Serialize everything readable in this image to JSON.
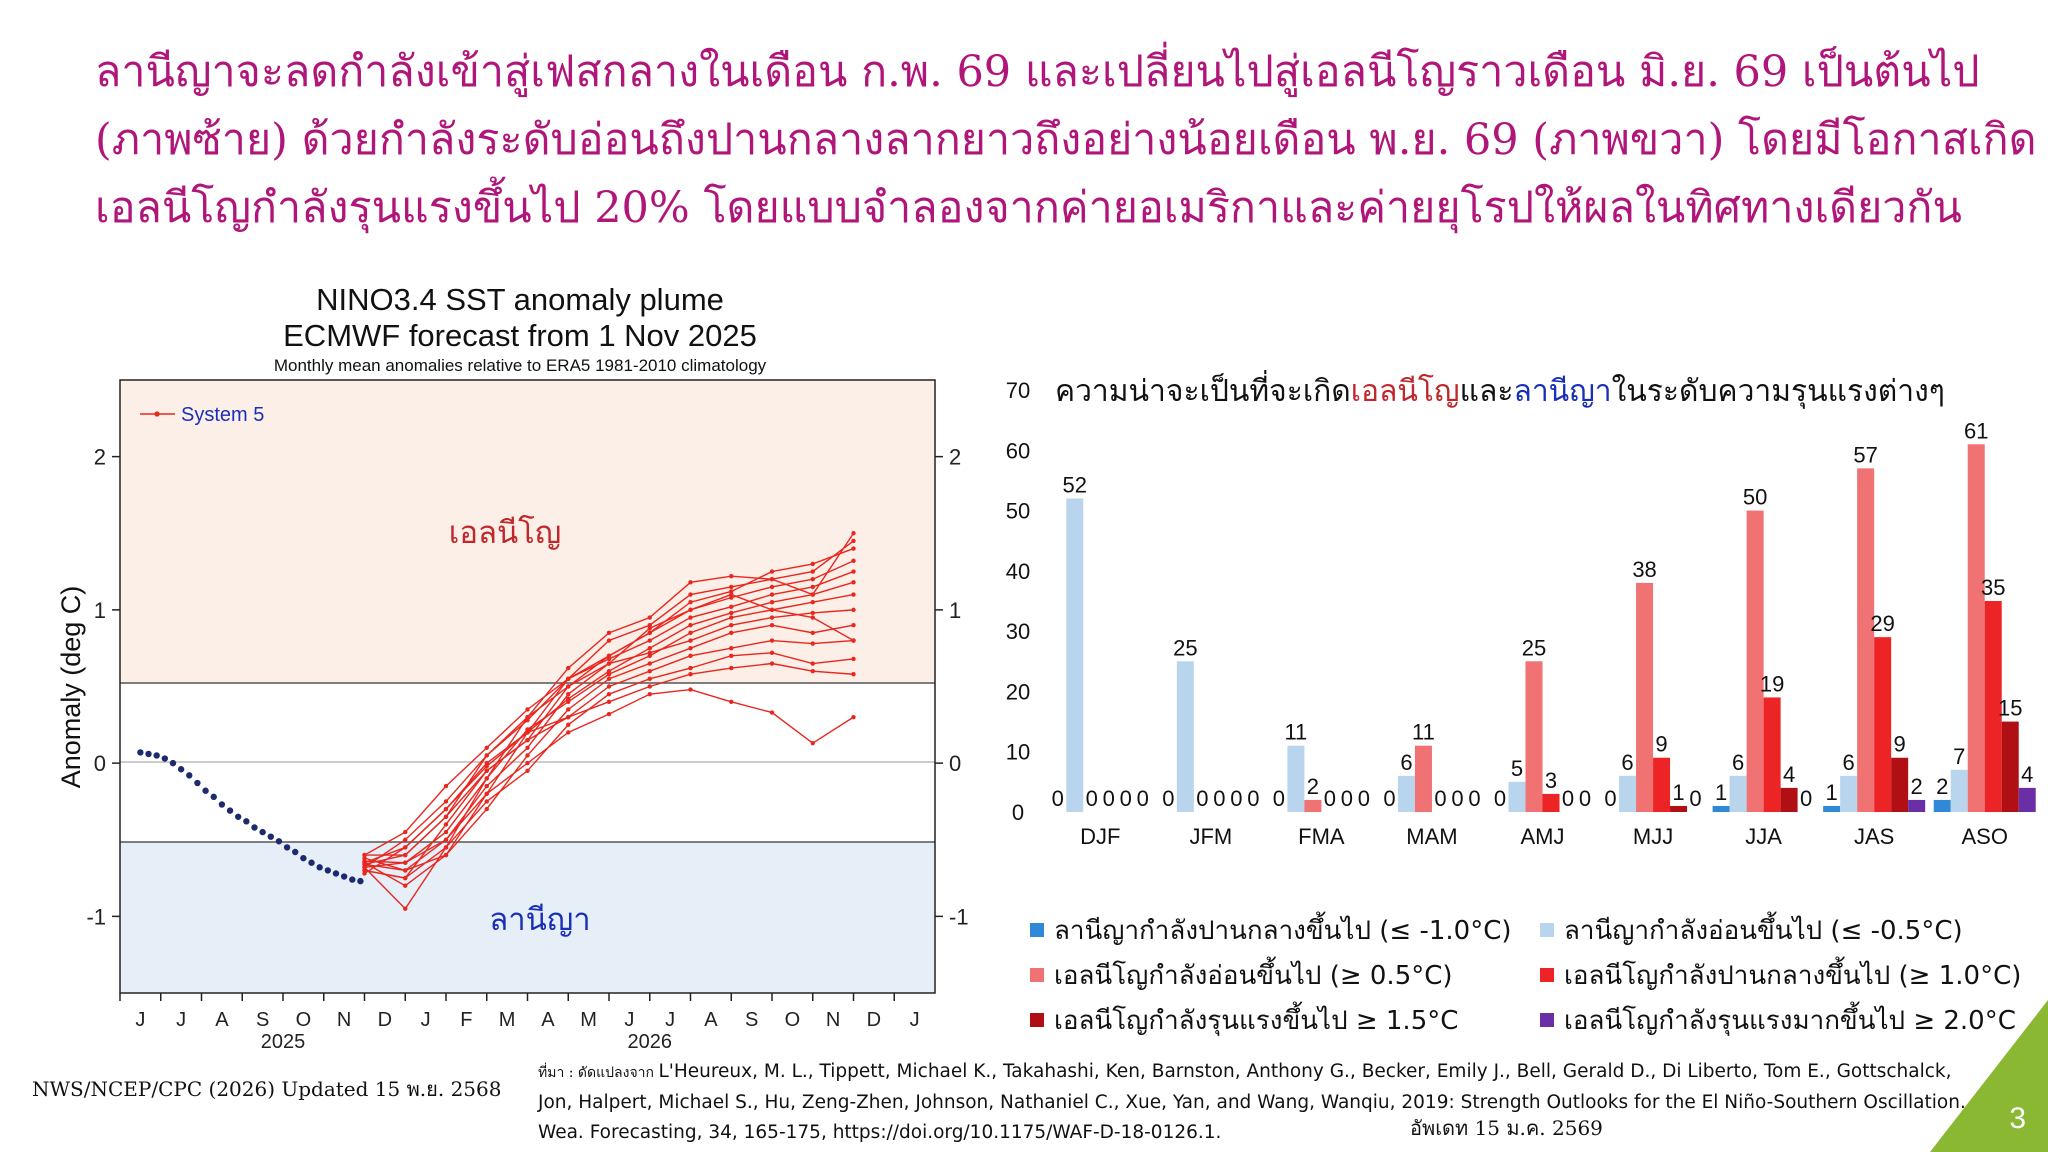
{
  "header": {
    "line1": "ลานีญาจะลดกำลังเข้าสู่เฟสกลางในเดือน ก.พ. 69 และเปลี่ยนไปสู่เอลนีโญราวเดือน มิ.ย. 69 เป็นต้นไป",
    "line2": "(ภาพซ้าย) ด้วยกำลังระดับอ่อนถึงปานกลางลากยาวถึงอย่างน้อยเดือน พ.ย. 69 (ภาพขวา) โดยมีโอกาสเกิด",
    "line3": "เอลนีโญกำลังรุนแรงขึ้นไป 20% โดยแบบจำลองจากค่ายอเมริกาและค่ายยุโรปให้ผลในทิศทางเดียวกัน"
  },
  "chart_data": [
    {
      "type": "line",
      "title": "NINO3.4 SST anomaly plume",
      "subtitle": "ECMWF forecast from 1 Nov 2025",
      "note": "Monthly mean anomalies relative to ERA5 1981-2010 climatology",
      "ylabel": "Anomaly (deg C)",
      "ylim": [
        -1.5,
        2.5
      ],
      "yticks": [
        -1,
        0,
        1,
        2
      ],
      "x_months": [
        "J",
        "J",
        "A",
        "S",
        "O",
        "N",
        "D",
        "J",
        "F",
        "M",
        "A",
        "M",
        "J",
        "J",
        "A",
        "S",
        "O",
        "N",
        "D",
        "J"
      ],
      "x_years": [
        "2025",
        "2026"
      ],
      "legend": "System 5",
      "region_labels": {
        "el_nino": "เอลนีโญ",
        "la_nina": "ลานีญา"
      },
      "thresholds": [
        0.5,
        -0.5
      ],
      "observed": {
        "x": [
          0.0,
          0.2,
          0.4,
          0.6,
          0.8,
          1.0,
          1.2,
          1.4,
          1.6,
          1.8,
          2.0,
          2.2,
          2.4,
          2.6,
          2.8,
          3.0,
          3.2,
          3.4,
          3.6,
          3.8,
          4.0,
          4.2,
          4.4,
          4.6,
          4.8,
          5.0,
          5.2,
          5.4
        ],
        "y": [
          0.07,
          0.06,
          0.05,
          0.03,
          0.0,
          -0.04,
          -0.08,
          -0.13,
          -0.18,
          -0.22,
          -0.27,
          -0.31,
          -0.35,
          -0.38,
          -0.42,
          -0.45,
          -0.48,
          -0.51,
          -0.55,
          -0.58,
          -0.62,
          -0.65,
          -0.68,
          -0.7,
          -0.72,
          -0.74,
          -0.76,
          -0.77
        ]
      },
      "members_x": [
        5.5,
        6.5,
        7.5,
        8.5,
        9.5,
        10.5,
        11.5,
        12.5,
        13.5,
        14.5,
        15.5,
        16.5,
        17.5
      ],
      "members": [
        [
          -0.68,
          -0.95,
          -0.55,
          -0.1,
          0.3,
          0.62,
          0.85,
          0.95,
          1.18,
          1.22,
          1.2,
          1.1,
          1.5
        ],
        [
          -0.65,
          -0.8,
          -0.6,
          -0.2,
          0.2,
          0.55,
          0.8,
          0.9,
          1.1,
          1.15,
          1.2,
          1.25,
          1.45
        ],
        [
          -0.7,
          -0.75,
          -0.4,
          -0.05,
          0.15,
          0.5,
          0.7,
          0.85,
          1.05,
          1.12,
          1.25,
          1.3,
          1.4
        ],
        [
          -0.66,
          -0.7,
          -0.5,
          -0.15,
          0.1,
          0.45,
          0.65,
          0.88,
          1.0,
          1.08,
          1.15,
          1.2,
          1.32
        ],
        [
          -0.6,
          -0.6,
          -0.35,
          0.05,
          0.28,
          0.55,
          0.68,
          0.8,
          0.95,
          1.02,
          1.1,
          1.15,
          1.25
        ],
        [
          -0.72,
          -0.55,
          -0.3,
          0.0,
          0.2,
          0.42,
          0.6,
          0.75,
          0.9,
          0.98,
          1.05,
          1.1,
          1.18
        ],
        [
          -0.64,
          -0.65,
          -0.45,
          -0.1,
          0.22,
          0.4,
          0.58,
          0.7,
          0.85,
          0.95,
          1.0,
          1.05,
          1.1
        ],
        [
          -0.68,
          -0.5,
          -0.25,
          0.05,
          0.3,
          0.5,
          0.65,
          0.72,
          0.8,
          0.9,
          0.95,
          0.98,
          1.0
        ],
        [
          -0.62,
          -0.7,
          -0.6,
          -0.3,
          0.05,
          0.35,
          0.55,
          0.65,
          0.75,
          0.85,
          0.9,
          0.85,
          0.9
        ],
        [
          -0.66,
          -0.6,
          -0.35,
          -0.05,
          0.15,
          0.3,
          0.5,
          0.6,
          0.7,
          0.75,
          0.8,
          0.78,
          0.8
        ],
        [
          -0.7,
          -0.75,
          -0.55,
          -0.25,
          -0.05,
          0.25,
          0.45,
          0.55,
          0.62,
          0.7,
          0.72,
          0.65,
          0.68
        ],
        [
          -0.65,
          -0.55,
          -0.3,
          -0.02,
          0.2,
          0.3,
          0.4,
          0.5,
          0.58,
          0.62,
          0.65,
          0.6,
          0.58
        ],
        [
          -0.6,
          -0.45,
          -0.15,
          0.1,
          0.35,
          0.55,
          0.7,
          0.85,
          1.0,
          1.1,
          1.0,
          0.95,
          0.8
        ],
        [
          -0.68,
          -0.65,
          -0.5,
          -0.2,
          0.0,
          0.2,
          0.32,
          0.45,
          0.48,
          0.4,
          0.33,
          0.13,
          0.3
        ]
      ]
    },
    {
      "type": "bar",
      "title": "ความน่าจะเป็นที่จะเกิดเอลนีโญและลานีญาในระดับความรุนแรงต่างๆ",
      "title_parts": [
        "ความน่าจะเป็นที่จะเกิด",
        "เอลนีโญ",
        "และ",
        "ลานีญา",
        "ในระดับความรุนแรงต่างๆ"
      ],
      "categories": [
        "DJF",
        "JFM",
        "FMA",
        "MAM",
        "AMJ",
        "MJJ",
        "JJA",
        "JAS",
        "ASO"
      ],
      "ylim": [
        0,
        70
      ],
      "yticks": [
        0,
        10,
        20,
        30,
        40,
        50,
        60,
        70
      ],
      "series": [
        {
          "name": "ลานีญากำลังปานกลางขึ้นไป (≤ -1.0°C)",
          "color": "#2f89d6",
          "values": [
            0,
            0,
            0,
            0,
            0,
            0,
            1,
            1,
            2
          ]
        },
        {
          "name": "ลานีญากำลังอ่อนขึ้นไป (≤ -0.5°C)",
          "color": "#b9d5ee",
          "values": [
            52,
            25,
            11,
            6,
            5,
            6,
            6,
            6,
            7
          ]
        },
        {
          "name": "เอลนีโญกำลังอ่อนขึ้นไป (≥ 0.5°C)",
          "color": "#f07272",
          "values": [
            0,
            0,
            2,
            11,
            25,
            38,
            50,
            57,
            61
          ]
        },
        {
          "name": "เอลนีโญกำลังปานกลางขึ้นไป (≥ 1.0°C)",
          "color": "#ec2426",
          "values": [
            0,
            0,
            0,
            0,
            3,
            9,
            19,
            29,
            35
          ]
        },
        {
          "name": "เอลนีโญกำลังรุนแรงขึ้นไป ≥ 1.5°C",
          "color": "#b00f14",
          "values": [
            0,
            0,
            0,
            0,
            0,
            1,
            4,
            9,
            15
          ]
        },
        {
          "name": "เอลนีโญกำลังรุนแรงมากขึ้นไป ≥ 2.0°C",
          "color": "#6a2fa6",
          "values": [
            0,
            0,
            0,
            0,
            0,
            0,
            0,
            2,
            4
          ]
        }
      ]
    }
  ],
  "footer": {
    "source_left": "NWS/NCEP/CPC (2026) Updated 15 พ.ย. 2568",
    "citation_prefix": "ที่มา : ดัดแปลงจาก ",
    "citation": "L'Heureux, M. L., Tippett, Michael K., Takahashi, Ken, Barnston, Anthony G., Becker, Emily J., Bell, Gerald D., Di Liberto, Tom E., Gottschalck, Jon, Halpert, Michael S., Hu, Zeng-Zhen, Johnson, Nathaniel C., Xue, Yan, and Wang, Wanqiu, 2019: Strength Outlooks for the El Niño-Southern Oscillation. Wea. Forecasting, 34, 165-175, https://doi.org/10.1175/WAF-D-18-0126.1.",
    "updated": "อัพเดท 15 ม.ค. 2569",
    "page_number": "3",
    "accent_color": "#8ab833"
  }
}
